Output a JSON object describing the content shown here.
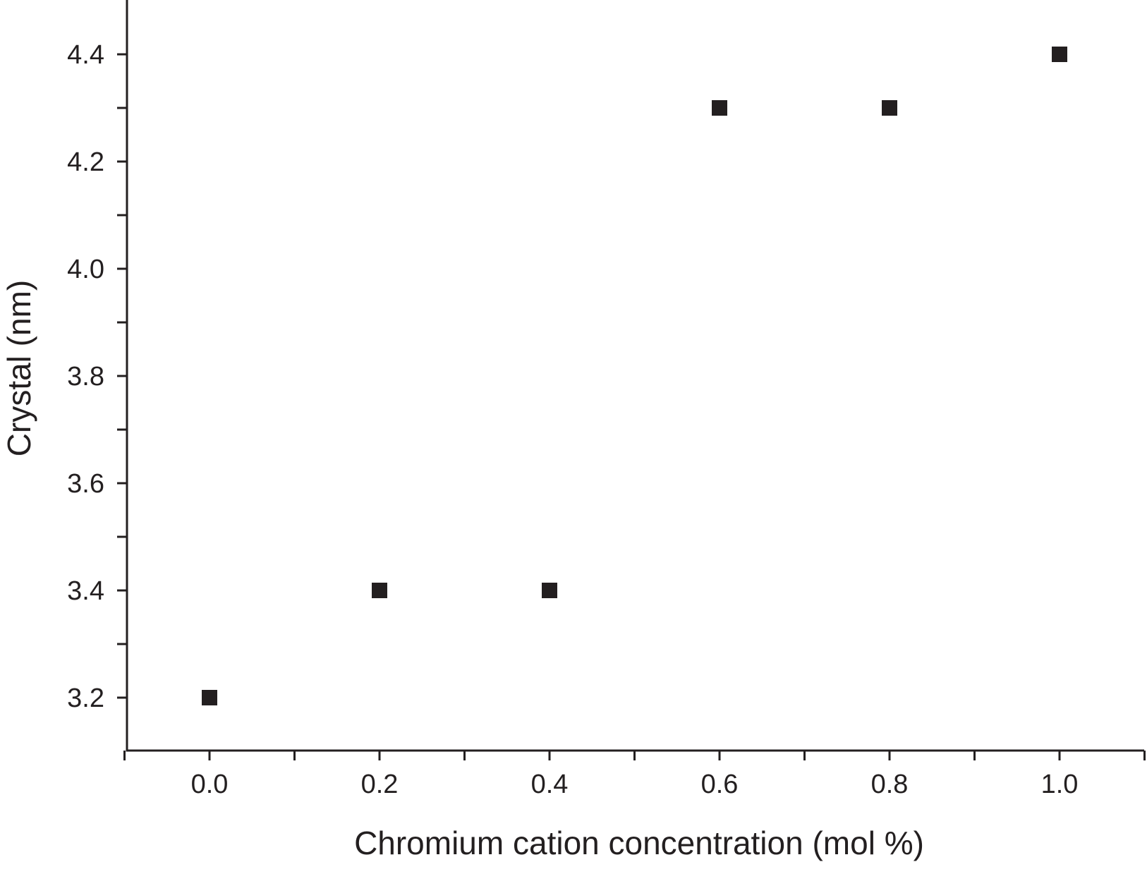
{
  "chart_data": {
    "type": "scatter",
    "title": "",
    "xlabel": "Chromium cation concentration (mol %)",
    "ylabel": "Crystal (nm)",
    "xlim": [
      -0.1,
      1.1
    ],
    "ylim": [
      3.1,
      4.5
    ],
    "x_ticks": [
      "0.0",
      "0.2",
      "0.4",
      "0.6",
      "0.8",
      "1.0"
    ],
    "y_ticks": [
      "3.2",
      "3.4",
      "3.6",
      "3.8",
      "4.0",
      "4.2",
      "4.4"
    ],
    "grid": false,
    "marker": "square",
    "color": "#231f20",
    "series": [
      {
        "x": [
          0.0,
          0.2,
          0.4,
          0.6,
          0.8,
          1.0
        ],
        "y": [
          3.2,
          3.4,
          3.4,
          4.3,
          4.3,
          4.4
        ]
      }
    ]
  }
}
